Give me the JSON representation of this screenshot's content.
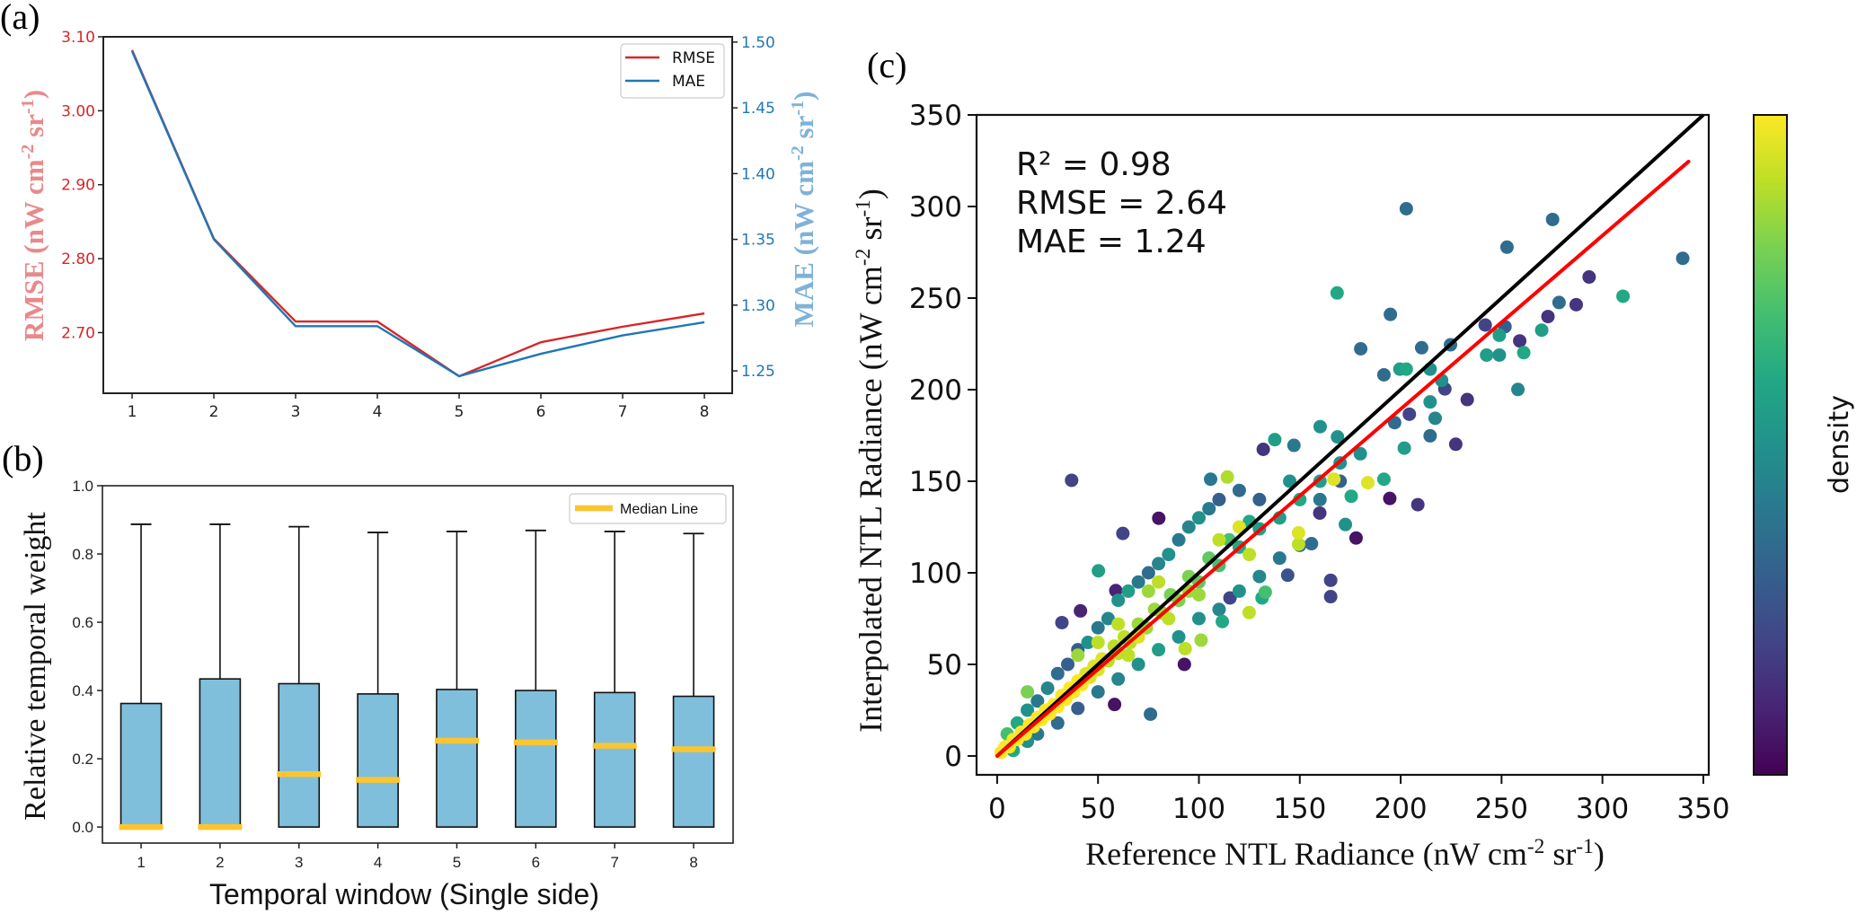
{
  "figure_labels": {
    "a": "(a)",
    "b": "(b)",
    "c": "(c)"
  },
  "chart_data": [
    {
      "type": "line",
      "panel": "(a)",
      "x": [
        1,
        2,
        3,
        4,
        5,
        6,
        7,
        8
      ],
      "xticks": [
        "1",
        "2",
        "3",
        "4",
        "5",
        "6",
        "7",
        "8"
      ],
      "xlim": [
        0.648,
        8.34
      ],
      "series": [
        {
          "name": "RMSE",
          "axis": "left",
          "color": "#d62728",
          "values": [
            3.082,
            2.827,
            2.715,
            2.715,
            2.641,
            2.687,
            2.708,
            2.726
          ]
        },
        {
          "name": "MAE",
          "axis": "right",
          "color": "#1f77b4",
          "values": [
            1.493,
            1.35,
            1.284,
            1.284,
            1.246,
            1.263,
            1.277,
            1.287
          ]
        }
      ],
      "ylim_left": [
        2.618,
        3.1
      ],
      "ylim_right": [
        1.233,
        1.504
      ],
      "yticks_left": [
        "2.70",
        "2.80",
        "2.90",
        "3.00",
        "3.10"
      ],
      "yticks_right": [
        "1.25",
        "1.30",
        "1.35",
        "1.40",
        "1.45",
        "1.50"
      ],
      "ylabel_left": {
        "text": "RMSE (nW cm",
        "sup1": "-2",
        "mid": " sr",
        "sup2": "-1",
        "end": ")",
        "color": "#e8898c"
      },
      "ylabel_right": {
        "text": "MAE (nW cm",
        "sup1": "-2",
        "mid": " sr",
        "sup2": "-1",
        "end": ")",
        "color": "#7fb2d8"
      },
      "tick_colors": {
        "left": "#d62728",
        "right": "#1f77b4"
      },
      "legend": {
        "position": "top-right",
        "entries": [
          "RMSE",
          "MAE"
        ]
      },
      "grid": false
    },
    {
      "type": "box",
      "panel": "(b)",
      "categories": [
        "1",
        "2",
        "3",
        "4",
        "5",
        "6",
        "7",
        "8"
      ],
      "boxes": [
        {
          "whislo": 0,
          "q1": 0,
          "median": 0.0,
          "q3": 0.362,
          "whishi": 0.887
        },
        {
          "whislo": 0,
          "q1": 0,
          "median": 0.0,
          "q3": 0.434,
          "whishi": 0.887
        },
        {
          "whislo": 0,
          "q1": 0,
          "median": 0.155,
          "q3": 0.42,
          "whishi": 0.88
        },
        {
          "whislo": 0,
          "q1": 0,
          "median": 0.138,
          "q3": 0.39,
          "whishi": 0.863
        },
        {
          "whislo": 0,
          "q1": 0,
          "median": 0.253,
          "q3": 0.403,
          "whishi": 0.866
        },
        {
          "whislo": 0,
          "q1": 0,
          "median": 0.248,
          "q3": 0.4,
          "whishi": 0.869
        },
        {
          "whislo": 0,
          "q1": 0,
          "median": 0.238,
          "q3": 0.394,
          "whishi": 0.866
        },
        {
          "whislo": 0,
          "q1": 0,
          "median": 0.228,
          "q3": 0.383,
          "whishi": 0.86
        }
      ],
      "xlim": [
        0.51,
        8.5
      ],
      "ylim": [
        -0.047,
        1.0
      ],
      "yticks": [
        "0.0",
        "0.2",
        "0.4",
        "0.6",
        "0.8",
        "1.0"
      ],
      "ylabel": "Relative temporal weight",
      "xlabel": "Temporal window (Single side)",
      "legend": {
        "position": "top-right",
        "entries": [
          "Median Line"
        ]
      },
      "colors": {
        "box": "#80bfdc",
        "median": "#fbc531"
      },
      "grid": false
    },
    {
      "type": "scatter",
      "panel": "(c)",
      "xlim": [
        -10.2,
        352.7
      ],
      "ylim": [
        -10.3,
        350
      ],
      "xticks": [
        "0",
        "50",
        "100",
        "150",
        "200",
        "250",
        "300",
        "350"
      ],
      "yticks": [
        "0",
        "50",
        "100",
        "150",
        "200",
        "250",
        "300",
        "350"
      ],
      "xlabel": {
        "text": "Reference NTL Radiance (nW cm",
        "sup1": "-2",
        "mid": " sr",
        "sup2": "-1",
        "end": ")"
      },
      "ylabel": {
        "text": "Interpolated NTL Radiance (nW cm",
        "sup1": "-2",
        "mid": " sr",
        "sup2": "-1",
        "end": ")"
      },
      "annotations": [
        "R² = 0.98",
        "RMSE = 2.64",
        "MAE = 1.24"
      ],
      "reference_line": {
        "slope": 1,
        "intercept": 0,
        "x_range": [
          0,
          350
        ],
        "color": "#000000"
      },
      "fit_line": {
        "slope": 0.947,
        "intercept": 0,
        "x_range": [
          0,
          342.7
        ],
        "color": "#ff0000"
      },
      "colorbar": {
        "label": "density",
        "cmap": "viridis"
      },
      "point_format": [
        "x",
        "y",
        "density"
      ],
      "points": [
        [
          202.8,
          298.8,
          0.35
        ],
        [
          275.3,
          292.9,
          0.35
        ],
        [
          252.7,
          277.8,
          0.35
        ],
        [
          339.8,
          271.7,
          0.35
        ],
        [
          168.5,
          252.8,
          0.6
        ],
        [
          293.4,
          261.5,
          0.15
        ],
        [
          310.2,
          251,
          0.6
        ],
        [
          278.5,
          247.6,
          0.35
        ],
        [
          287,
          246.4,
          0.15
        ],
        [
          194.9,
          241.1,
          0.35
        ],
        [
          273,
          239.9,
          0.15
        ],
        [
          269.9,
          232.5,
          0.55
        ],
        [
          241.9,
          235.3,
          0.2
        ],
        [
          251.7,
          234.4,
          0.3
        ],
        [
          259,
          226.6,
          0.15
        ],
        [
          261,
          220.2,
          0.6
        ],
        [
          248.9,
          229.7,
          0.55
        ],
        [
          248.9,
          218.9,
          0.5
        ],
        [
          242.6,
          218.9,
          0.55
        ],
        [
          258.1,
          200.1,
          0.45
        ],
        [
          180.2,
          222.3,
          0.35
        ],
        [
          210.4,
          222.9,
          0.35
        ],
        [
          224.7,
          224.5,
          0.35
        ],
        [
          233,
          194.6,
          0.15
        ],
        [
          191.7,
          208.1,
          0.35
        ],
        [
          199.6,
          211.2,
          0.55
        ],
        [
          202.8,
          211.2,
          0.6
        ],
        [
          214.6,
          211.2,
          0.5
        ],
        [
          220.3,
          205.1,
          0.5
        ],
        [
          221.9,
          200.4,
          0.2
        ],
        [
          214.6,
          193.3,
          0.5
        ],
        [
          217.1,
          184.4,
          0.45
        ],
        [
          227.3,
          170.2,
          0.15
        ],
        [
          214.6,
          174.8,
          0.35
        ],
        [
          201.8,
          168.1,
          0.55
        ],
        [
          204.3,
          186.6,
          0.2
        ],
        [
          197,
          182,
          0.35
        ],
        [
          194.6,
          140.6,
          0.05
        ],
        [
          208.5,
          137.2,
          0.15
        ],
        [
          177.9,
          119,
          0.05
        ],
        [
          165.3,
          95.9,
          0.2
        ],
        [
          165.3,
          87,
          0.2
        ],
        [
          144,
          98.7,
          0.25
        ],
        [
          36.9,
          150.5,
          0.2
        ],
        [
          62.3,
          121.5,
          0.2
        ],
        [
          80.1,
          129.8,
          0.05
        ],
        [
          50.2,
          101.1,
          0.55
        ],
        [
          76.0,
          22.8,
          0.35
        ],
        [
          58.2,
          28.1,
          0.05
        ],
        [
          92.8,
          50,
          0.05
        ],
        [
          41.3,
          79.2,
          0.1
        ],
        [
          32.1,
          72.8,
          0.2
        ],
        [
          58.8,
          90.3,
          0.1
        ],
        [
          131.9,
          167.4,
          0.15
        ],
        [
          137.6,
          172.7,
          0.55
        ],
        [
          147.1,
          169.6,
          0.4
        ],
        [
          160.1,
          179.8,
          0.5
        ],
        [
          168.7,
          174.2,
          0.5
        ],
        [
          114.1,
          152.3,
          0.88
        ],
        [
          105.8,
          151.1,
          0.4
        ],
        [
          166.9,
          151.1,
          0.95
        ],
        [
          183.7,
          149.2,
          0.95
        ],
        [
          191.7,
          151.1,
          0.6
        ],
        [
          175.5,
          141.8,
          0.6
        ],
        [
          149.4,
          121.8,
          0.95
        ],
        [
          149.4,
          115.6,
          0.9
        ],
        [
          155.8,
          115.9,
          0.35
        ],
        [
          159.9,
          132.6,
          0.15
        ],
        [
          172.6,
          126.4,
          0.5
        ],
        [
          124.9,
          78.3,
          0.9
        ],
        [
          132.9,
          89.4,
          0.7
        ],
        [
          131.3,
          86.3,
          0.6
        ],
        [
          115.4,
          86.3,
          0.2
        ],
        [
          111.6,
          73.4,
          0.6
        ],
        [
          93.2,
          58.6,
          0.9
        ],
        [
          101.1,
          63.2,
          0.85
        ],
        [
          5,
          12,
          0.7
        ],
        [
          10,
          18,
          0.6
        ],
        [
          15,
          25,
          0.5
        ],
        [
          20,
          30,
          0.4
        ],
        [
          25,
          37,
          0.45
        ],
        [
          30,
          45,
          0.35
        ],
        [
          35,
          50,
          0.3
        ],
        [
          40,
          58,
          0.3
        ],
        [
          45,
          62,
          0.5
        ],
        [
          50,
          70,
          0.4
        ],
        [
          55,
          75,
          0.45
        ],
        [
          60,
          85,
          0.5
        ],
        [
          65,
          90,
          0.55
        ],
        [
          70,
          95,
          0.4
        ],
        [
          75,
          100,
          0.35
        ],
        [
          80,
          105,
          0.45
        ],
        [
          85,
          110,
          0.5
        ],
        [
          90,
          118,
          0.4
        ],
        [
          95,
          125,
          0.45
        ],
        [
          100,
          130,
          0.5
        ],
        [
          105,
          135,
          0.4
        ],
        [
          110,
          140,
          0.3
        ],
        [
          120,
          145,
          0.35
        ],
        [
          130,
          140,
          0.3
        ],
        [
          8,
          3,
          0.6
        ],
        [
          15,
          8,
          0.5
        ],
        [
          20,
          12,
          0.4
        ],
        [
          30,
          18,
          0.35
        ],
        [
          40,
          26,
          0.3
        ],
        [
          50,
          35,
          0.4
        ],
        [
          60,
          42,
          0.45
        ],
        [
          70,
          50,
          0.5
        ],
        [
          80,
          58,
          0.55
        ],
        [
          90,
          65,
          0.5
        ],
        [
          100,
          75,
          0.5
        ],
        [
          110,
          80,
          0.45
        ],
        [
          120,
          90,
          0.5
        ],
        [
          130,
          98,
          0.45
        ],
        [
          140,
          108,
          0.4
        ],
        [
          150,
          115,
          0.35
        ],
        [
          140,
          130,
          0.55
        ],
        [
          150,
          140,
          0.6
        ],
        [
          160,
          150,
          0.55
        ],
        [
          170,
          160,
          0.5
        ],
        [
          180,
          165,
          0.5
        ],
        [
          160,
          140,
          0.4
        ],
        [
          170,
          150,
          0.3
        ],
        [
          145,
          150,
          0.5
        ],
        [
          40,
          55,
          0.85
        ],
        [
          50,
          62,
          0.9
        ],
        [
          60,
          72,
          0.9
        ],
        [
          75,
          90,
          0.85
        ],
        [
          80,
          95,
          0.9
        ],
        [
          95,
          90,
          0.85
        ],
        [
          100,
          88,
          0.85
        ],
        [
          110,
          118,
          0.9
        ],
        [
          120,
          125,
          0.95
        ],
        [
          125,
          110,
          0.9
        ],
        [
          85,
          75,
          0.9
        ],
        [
          70,
          65,
          0.95
        ],
        [
          65,
          55,
          0.9
        ],
        [
          15,
          35,
          0.8
        ],
        [
          2,
          2,
          1
        ],
        [
          4,
          5,
          1
        ],
        [
          6,
          5,
          1
        ],
        [
          8,
          9,
          1
        ],
        [
          10,
          9,
          1
        ],
        [
          12,
          13,
          1
        ],
        [
          14,
          12,
          1
        ],
        [
          16,
          17,
          1
        ],
        [
          18,
          16,
          1
        ],
        [
          20,
          21,
          1
        ],
        [
          22,
          20,
          1
        ],
        [
          24,
          25,
          1
        ],
        [
          26,
          23,
          1
        ],
        [
          28,
          28,
          1
        ],
        [
          30,
          27,
          1
        ],
        [
          32,
          33,
          1
        ],
        [
          34,
          31,
          1
        ],
        [
          36,
          37,
          1
        ],
        [
          38,
          35,
          1
        ],
        [
          40,
          41,
          1
        ],
        [
          42,
          39,
          1
        ],
        [
          44,
          45,
          0.95
        ],
        [
          46,
          43,
          0.95
        ],
        [
          48,
          49,
          0.95
        ],
        [
          50,
          47,
          0.95
        ],
        [
          52,
          53,
          0.95
        ],
        [
          55,
          52,
          0.9
        ],
        [
          58,
          60,
          0.9
        ],
        [
          60,
          56,
          0.9
        ],
        [
          63,
          65,
          0.9
        ],
        [
          66,
          62,
          0.9
        ],
        [
          70,
          72,
          0.85
        ],
        [
          74,
          70,
          0.85
        ],
        [
          78,
          80,
          0.85
        ],
        [
          82,
          78,
          0.85
        ],
        [
          86,
          88,
          0.8
        ],
        [
          90,
          85,
          0.8
        ],
        [
          95,
          98,
          0.8
        ],
        [
          100,
          95,
          0.75
        ],
        [
          105,
          108,
          0.75
        ],
        [
          110,
          104,
          0.7
        ],
        [
          115,
          118,
          0.7
        ],
        [
          120,
          114,
          0.6
        ],
        [
          125,
          128,
          0.6
        ],
        [
          130,
          124,
          0.55
        ]
      ],
      "grid": false
    }
  ]
}
